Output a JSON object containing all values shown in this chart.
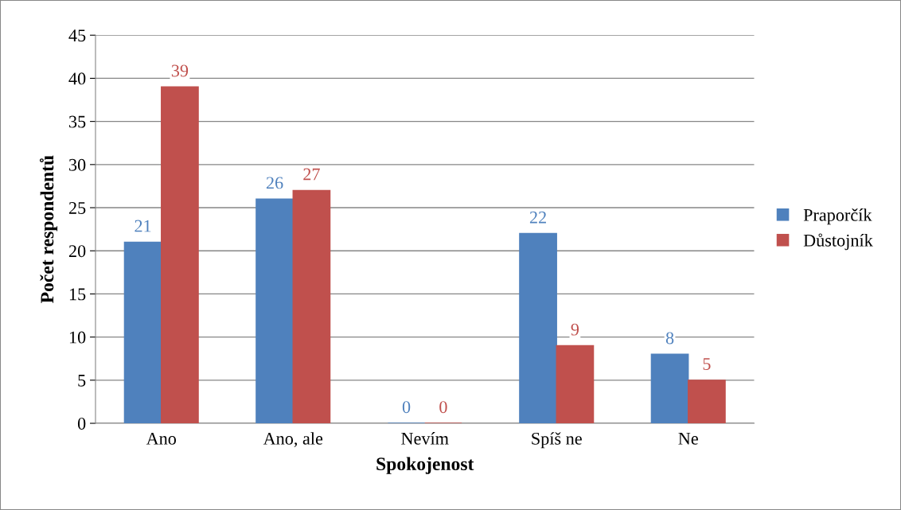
{
  "chart_data": {
    "type": "bar",
    "xlabel": "Spokojenost",
    "ylabel": "Počet respondentů",
    "categories": [
      "Ano",
      "Ano, ale",
      "Nevím",
      "Spíš ne",
      "Ne"
    ],
    "series": [
      {
        "name": "Praporčík",
        "color": "#4f81bd",
        "values": [
          21,
          26,
          0,
          22,
          8
        ]
      },
      {
        "name": "Důstojník",
        "color": "#c0504d",
        "values": [
          39,
          27,
          0,
          9,
          5
        ]
      }
    ],
    "ylim": [
      0,
      45
    ],
    "yticks": [
      0,
      5,
      10,
      15,
      20,
      25,
      30,
      35,
      40,
      45
    ],
    "grid": "y",
    "legend": "right",
    "data_labels": true
  }
}
